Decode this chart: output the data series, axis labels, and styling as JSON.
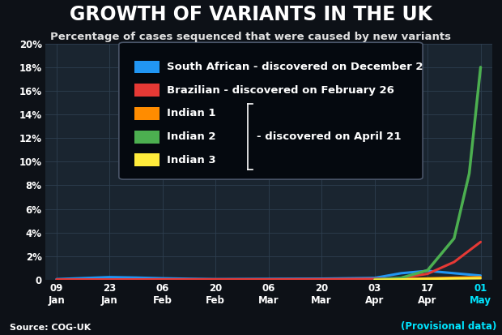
{
  "title": "GROWTH OF VARIANTS IN THE UK",
  "subtitle": "Percentage of cases sequenced that were caused by new variants",
  "source": "Source: COG-UK",
  "provisional": "(Provisional data)",
  "background_color": "#0d1117",
  "plot_bg_color": "#1a2530",
  "grid_color": "#2e3f50",
  "title_color": "#ffffff",
  "subtitle_color": "#e0e0e0",
  "source_color": "#ffffff",
  "provisional_color": "#00e5ff",
  "x_tick_labels": [
    "09\nJan",
    "23\nJan",
    "06\nFeb",
    "20\nFeb",
    "06\nMar",
    "20\nMar",
    "03\nApr",
    "17\nApr",
    "01\nMay"
  ],
  "x_tick_positions": [
    0,
    14,
    28,
    42,
    56,
    70,
    84,
    98,
    112
  ],
  "ylim": [
    0,
    20
  ],
  "ytick_vals": [
    0,
    2,
    4,
    6,
    8,
    10,
    12,
    14,
    16,
    18,
    20
  ],
  "series": {
    "south_african": {
      "label": "South African - discovered on December 2",
      "color": "#2196f3",
      "linewidth": 2.2,
      "x": [
        0,
        14,
        21,
        28,
        35,
        42,
        56,
        70,
        84,
        91,
        98,
        105,
        112
      ],
      "y": [
        0.05,
        0.22,
        0.18,
        0.12,
        0.08,
        0.05,
        0.07,
        0.09,
        0.15,
        0.55,
        0.75,
        0.55,
        0.35
      ]
    },
    "brazilian": {
      "label": "Brazilian - discovered on February 26",
      "color": "#e53935",
      "linewidth": 2.2,
      "x": [
        0,
        14,
        28,
        42,
        56,
        70,
        84,
        91,
        98,
        105,
        112
      ],
      "y": [
        0.02,
        0.02,
        0.03,
        0.03,
        0.03,
        0.04,
        0.07,
        0.15,
        0.5,
        1.5,
        3.2
      ]
    },
    "indian1": {
      "label": "Indian 1",
      "color": "#ff8c00",
      "linewidth": 2.0,
      "x": [
        84,
        91,
        98,
        105,
        112
      ],
      "y": [
        0.0,
        0.05,
        0.12,
        0.18,
        0.22
      ]
    },
    "indian2": {
      "label": "Indian 2",
      "color": "#4caf50",
      "linewidth": 2.5,
      "x": [
        84,
        91,
        98,
        105,
        109,
        112
      ],
      "y": [
        0.0,
        0.15,
        0.8,
        3.5,
        9.0,
        18.0
      ]
    },
    "indian3": {
      "label": "Indian 3",
      "color": "#ffeb3b",
      "linewidth": 2.0,
      "x": [
        84,
        91,
        98,
        105,
        112
      ],
      "y": [
        0.0,
        0.03,
        0.07,
        0.1,
        0.12
      ]
    }
  },
  "legend": {
    "facecolor": "#05090f",
    "edgecolor": "#4a5568",
    "text_color": "#ffffff",
    "fontsize": 9.5,
    "patch_size": 12,
    "april_annotation": "- discovered on April 21"
  }
}
